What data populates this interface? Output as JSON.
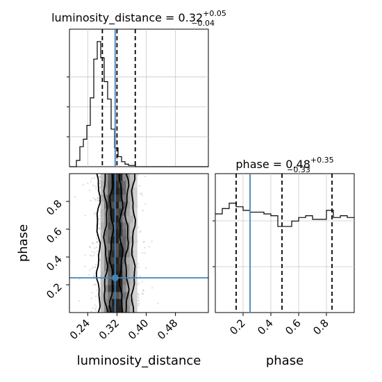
{
  "chart_data": {
    "type": "corner",
    "parameters": [
      {
        "name": "luminosity_distance",
        "title_prefix": "luminosity_distance = ",
        "median": "0.32",
        "plus": "+0.05",
        "minus": "−0.04",
        "quantiles": [
          0.28,
          0.32,
          0.37
        ],
        "truth": 0.315,
        "range": [
          0.19,
          0.57
        ],
        "ticks": [
          0.24,
          0.32,
          0.4,
          0.48
        ],
        "tick_labels": [
          "0.24",
          "0.32",
          "0.40",
          "0.48"
        ],
        "hist_edges_start": 0.19,
        "hist_bin_width": 0.0095,
        "hist_counts": [
          0,
          0,
          5,
          16,
          22,
          33,
          55,
          86,
          100,
          87,
          68,
          54,
          30,
          15,
          8,
          4,
          2,
          1,
          1,
          0,
          0,
          0,
          0,
          0,
          0,
          0,
          0,
          0,
          0,
          0,
          0,
          0,
          0,
          0,
          0,
          0,
          0,
          0,
          0,
          0
        ]
      },
      {
        "name": "phase",
        "title_prefix": "phase = ",
        "median": "0.48",
        "plus": "+0.35",
        "minus": "−0.33",
        "quantiles": [
          0.15,
          0.48,
          0.84
        ],
        "truth": 0.25,
        "range": [
          0.0,
          1.0
        ],
        "ticks": [
          0.2,
          0.4,
          0.6,
          0.8
        ],
        "tick_labels": [
          "0.2",
          "0.4",
          "0.6",
          "0.8"
        ],
        "hist_edges_start": 0.0,
        "hist_bin_width": 0.05,
        "hist_counts": [
          55,
          58,
          61,
          59,
          57,
          56,
          56,
          55,
          54,
          48,
          48,
          51,
          53,
          54,
          52,
          52,
          57,
          53,
          54,
          53
        ]
      }
    ],
    "joint": {
      "x": "luminosity_distance",
      "y": "phase",
      "contour_levels": 3,
      "truth": [
        0.315,
        0.25
      ]
    },
    "colors": {
      "hist": "#000000",
      "truth": "#4682b4",
      "grid": "#c8c8c8",
      "quantile": "#000000"
    },
    "grid": true
  }
}
